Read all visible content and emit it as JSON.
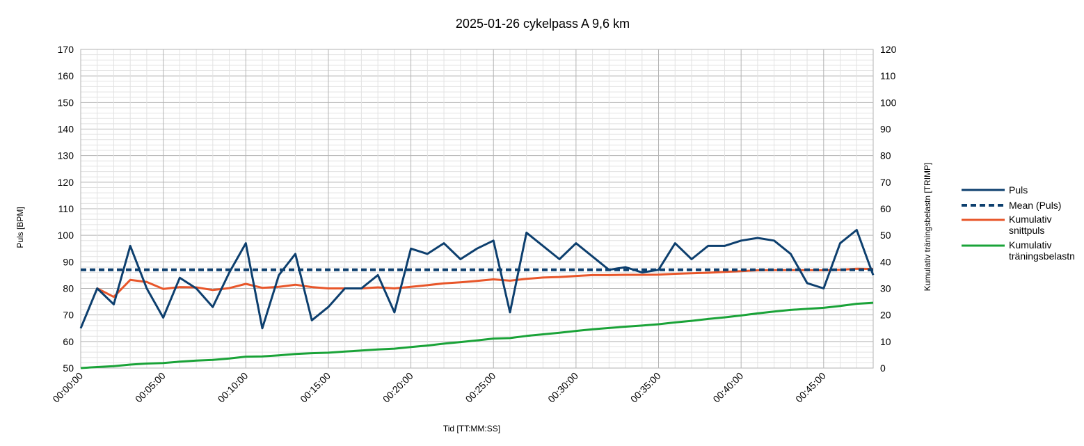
{
  "chart_data": {
    "type": "line",
    "title": "2025-01-26 cykelpass A 9,6 km",
    "xlabel": "Tid [TT:MM:SS]",
    "ylabel": "Puls [BPM]",
    "y2label": "Kumulativ träningsbelastn [TRIMP]",
    "xlim": [
      0,
      48
    ],
    "ylim": [
      50,
      170
    ],
    "y2lim": [
      0,
      120
    ],
    "x_tick_labels": [
      "00:00:00",
      "00:05:00",
      "00:10:00",
      "00:15:00",
      "00:20:00",
      "00:25:00",
      "00:30:00",
      "00:35:00",
      "00:40:00",
      "00:45:00"
    ],
    "y_ticks": [
      50,
      60,
      70,
      80,
      90,
      100,
      110,
      120,
      130,
      140,
      150,
      160,
      170
    ],
    "y2_ticks": [
      0,
      10,
      20,
      30,
      40,
      50,
      60,
      70,
      80,
      90,
      100,
      110,
      120
    ],
    "grid": true,
    "legend_position": "right",
    "series": [
      {
        "name": "Puls",
        "axis": "left",
        "color": "#0d3f6e",
        "style": "solid",
        "x": [
          0,
          1,
          2,
          3,
          4,
          5,
          6,
          7,
          8,
          9,
          10,
          11,
          12,
          13,
          14,
          15,
          16,
          17,
          18,
          19,
          20,
          21,
          22,
          23,
          24,
          25,
          26,
          27,
          28,
          29,
          30,
          31,
          32,
          33,
          34,
          35,
          36,
          37,
          38,
          39,
          40,
          41,
          42,
          43,
          44,
          45,
          46,
          47,
          48
        ],
        "values": [
          65,
          80,
          74,
          96,
          80,
          69,
          84,
          80,
          73,
          86,
          97,
          65,
          85,
          93,
          68,
          73,
          80,
          80,
          85,
          71,
          95,
          93,
          97,
          91,
          95,
          98,
          71,
          101,
          96,
          91,
          97,
          92,
          87,
          88,
          86,
          87,
          97,
          91,
          96,
          96,
          98,
          99,
          98,
          93,
          82,
          80,
          97,
          102,
          85
        ]
      },
      {
        "name": "Mean (Puls)",
        "axis": "left",
        "color": "#0d3f6e",
        "style": "dashed",
        "x": [
          0,
          48
        ],
        "values": [
          87,
          87
        ]
      },
      {
        "name": "Kumulativ snittpuls",
        "axis": "left",
        "color": "#e8562a",
        "style": "solid",
        "x": [
          1,
          2,
          3,
          4,
          5,
          6,
          7,
          8,
          9,
          10,
          11,
          12,
          13,
          14,
          15,
          16,
          17,
          18,
          19,
          20,
          21,
          22,
          23,
          24,
          25,
          26,
          27,
          28,
          29,
          30,
          31,
          32,
          33,
          34,
          35,
          36,
          37,
          38,
          39,
          40,
          41,
          42,
          43,
          44,
          45,
          46,
          47,
          48
        ],
        "values": [
          80,
          76.8,
          83.2,
          82.4,
          79.8,
          80.5,
          80.4,
          79.4,
          80.1,
          81.7,
          80.2,
          80.6,
          81.4,
          80.5,
          80,
          80,
          80,
          80.4,
          80,
          80.6,
          81.2,
          81.9,
          82.3,
          82.8,
          83.4,
          82.9,
          83.6,
          84.1,
          84.3,
          84.7,
          85,
          85,
          85.1,
          85.1,
          85.2,
          85.5,
          85.7,
          85.9,
          86.2,
          86.5,
          86.8,
          86.9,
          86.9,
          86.9,
          86.8,
          87,
          87.4,
          87.3
        ]
      },
      {
        "name": "Kumulativ träningsbelastn",
        "axis": "right",
        "color": "#1aa338",
        "style": "solid",
        "x": [
          0,
          1,
          2,
          3,
          4,
          5,
          6,
          7,
          8,
          9,
          10,
          11,
          12,
          13,
          14,
          15,
          16,
          17,
          18,
          19,
          20,
          21,
          22,
          23,
          24,
          25,
          26,
          27,
          28,
          29,
          30,
          31,
          32,
          33,
          34,
          35,
          36,
          37,
          38,
          39,
          40,
          41,
          42,
          43,
          44,
          45,
          46,
          47,
          48
        ],
        "values": [
          0,
          0.4,
          0.7,
          1.3,
          1.7,
          1.9,
          2.4,
          2.8,
          3.1,
          3.6,
          4.3,
          4.4,
          4.8,
          5.3,
          5.6,
          5.8,
          6.2,
          6.6,
          7,
          7.3,
          7.9,
          8.5,
          9.2,
          9.8,
          10.4,
          11.1,
          11.3,
          12.1,
          12.7,
          13.3,
          14,
          14.6,
          15.1,
          15.6,
          16,
          16.5,
          17.2,
          17.8,
          18.5,
          19.1,
          19.8,
          20.6,
          21.3,
          21.9,
          22.3,
          22.7,
          23.4,
          24.2,
          24.6
        ]
      }
    ]
  }
}
